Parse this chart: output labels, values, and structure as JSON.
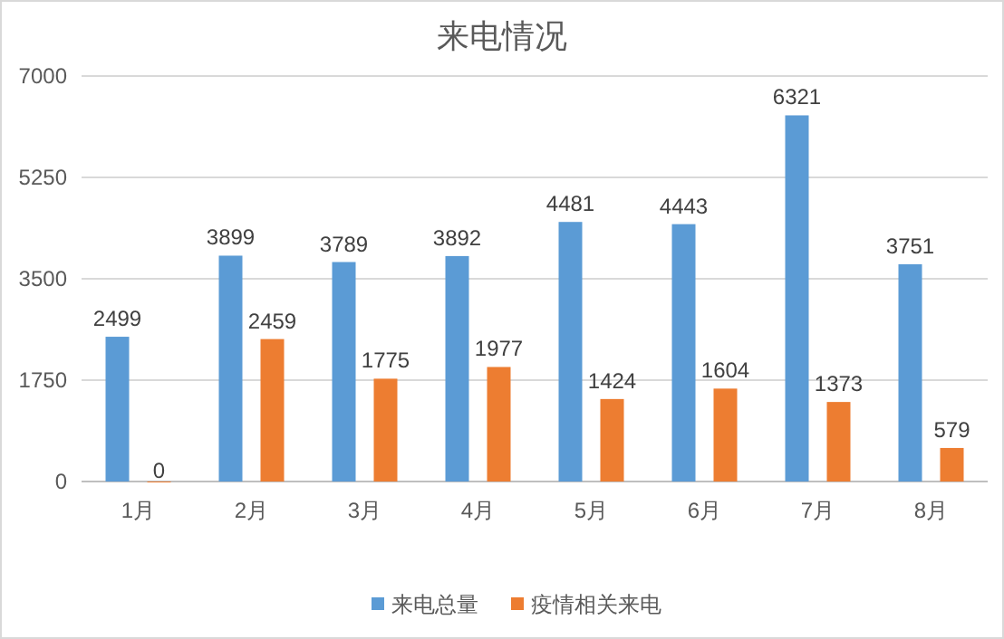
{
  "chart_data": {
    "type": "bar",
    "title": "来电情况",
    "categories": [
      "1月",
      "2月",
      "3月",
      "4月",
      "5月",
      "6月",
      "7月",
      "8月"
    ],
    "series": [
      {
        "name": "来电总量",
        "color": "#5b9bd5",
        "values": [
          2499,
          3899,
          3789,
          3892,
          4481,
          4443,
          6321,
          3751
        ]
      },
      {
        "name": "疫情相关来电",
        "color": "#ed7d31",
        "values": [
          0,
          2459,
          1775,
          1977,
          1424,
          1604,
          1373,
          579
        ]
      }
    ],
    "ylim": [
      0,
      7000
    ],
    "yticks": [
      0,
      1750,
      3500,
      5250,
      7000
    ],
    "grid": "y",
    "legend": "bottom",
    "data_labels": true
  }
}
